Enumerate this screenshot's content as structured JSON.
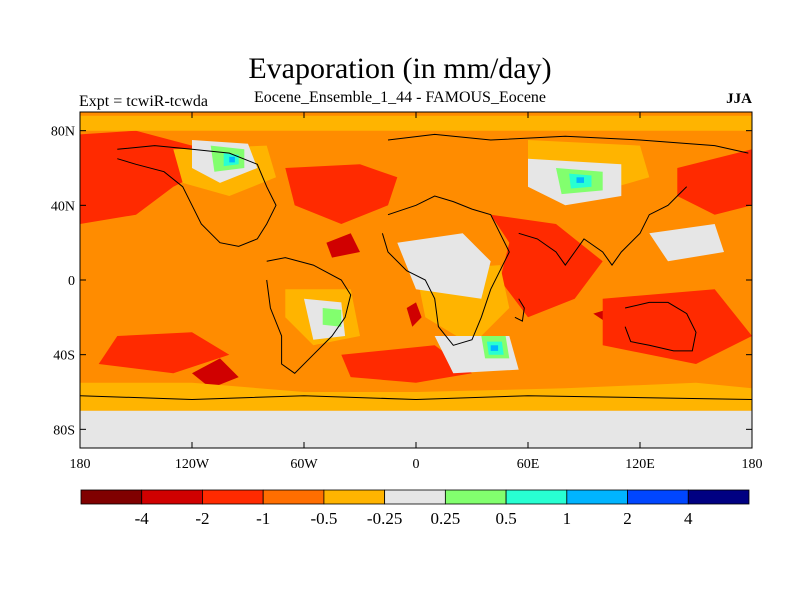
{
  "header": {
    "title": "Evaporation (in mm/day)",
    "subtitle": "Eocene_Ensemble_1_44 - FAMOUS_Eocene",
    "left_label": "Expt = tcwiR-tcwda",
    "right_label": "JJA"
  },
  "map": {
    "projection": "cylindrical-equidistant",
    "lon_range": [
      -180,
      180
    ],
    "lat_range": [
      -90,
      90
    ],
    "x_ticks": [
      {
        "lon": -180,
        "label": "180"
      },
      {
        "lon": -120,
        "label": "120W"
      },
      {
        "lon": -60,
        "label": "60W"
      },
      {
        "lon": 0,
        "label": "0"
      },
      {
        "lon": 60,
        "label": "60E"
      },
      {
        "lon": 120,
        "label": "120E"
      },
      {
        "lon": 180,
        "label": "180"
      }
    ],
    "y_ticks": [
      {
        "lat": 80,
        "label": "80N"
      },
      {
        "lat": 40,
        "label": "40N"
      },
      {
        "lat": 0,
        "label": "0"
      },
      {
        "lat": -40,
        "label": "40S"
      },
      {
        "lat": -80,
        "label": "80S"
      }
    ],
    "background_color": "#ff8c00"
  },
  "colorbar": {
    "colors": [
      "#800000",
      "#d00000",
      "#ff2a00",
      "#ff6e00",
      "#ffb400",
      "#e6e6e6",
      "#82ff6e",
      "#28ffd2",
      "#00b4ff",
      "#0046ff",
      "#000082"
    ],
    "labels": [
      "-4",
      "-2",
      "-1",
      "-0.5",
      "-0.25",
      "0.25",
      "0.5",
      "1",
      "2",
      "4"
    ]
  },
  "regions": [
    {
      "name": "deep-red",
      "color": "#d00000",
      "points": [
        [
          -178,
          55
        ],
        [
          -165,
          58
        ],
        [
          -145,
          55
        ],
        [
          -140,
          45
        ],
        [
          -150,
          38
        ],
        [
          -170,
          40
        ],
        [
          -178,
          48
        ]
      ]
    },
    {
      "name": "deep-red",
      "color": "#d00000",
      "points": [
        [
          -120,
          -50
        ],
        [
          -105,
          -42
        ],
        [
          -95,
          -52
        ],
        [
          -110,
          -58
        ]
      ]
    },
    {
      "name": "deep-red",
      "color": "#d00000",
      "points": [
        [
          95,
          -18
        ],
        [
          115,
          -12
        ],
        [
          140,
          -20
        ],
        [
          150,
          -30
        ],
        [
          130,
          -33
        ],
        [
          110,
          -28
        ]
      ]
    },
    {
      "name": "deep-red",
      "color": "#d00000",
      "points": [
        [
          -5,
          -15
        ],
        [
          0,
          -12
        ],
        [
          3,
          -20
        ],
        [
          -2,
          -25
        ]
      ]
    },
    {
      "name": "deep-red",
      "color": "#d00000",
      "points": [
        [
          -48,
          20
        ],
        [
          -35,
          25
        ],
        [
          -30,
          15
        ],
        [
          -45,
          12
        ]
      ]
    },
    {
      "name": "red",
      "color": "#ff2a00",
      "points": [
        [
          -180,
          78
        ],
        [
          -150,
          80
        ],
        [
          -120,
          72
        ],
        [
          -110,
          60
        ],
        [
          -130,
          50
        ],
        [
          -150,
          35
        ],
        [
          -180,
          30
        ]
      ]
    },
    {
      "name": "red",
      "color": "#ff2a00",
      "points": [
        [
          -70,
          60
        ],
        [
          -30,
          62
        ],
        [
          -10,
          55
        ],
        [
          -15,
          40
        ],
        [
          -40,
          30
        ],
        [
          -65,
          40
        ]
      ]
    },
    {
      "name": "red",
      "color": "#ff2a00",
      "points": [
        [
          40,
          35
        ],
        [
          75,
          30
        ],
        [
          100,
          10
        ],
        [
          85,
          -10
        ],
        [
          60,
          -20
        ],
        [
          45,
          0
        ],
        [
          50,
          20
        ]
      ]
    },
    {
      "name": "red",
      "color": "#ff2a00",
      "points": [
        [
          100,
          -10
        ],
        [
          160,
          -5
        ],
        [
          180,
          -30
        ],
        [
          150,
          -45
        ],
        [
          100,
          -35
        ]
      ]
    },
    {
      "name": "red",
      "color": "#ff2a00",
      "points": [
        [
          140,
          60
        ],
        [
          180,
          70
        ],
        [
          180,
          40
        ],
        [
          160,
          35
        ],
        [
          140,
          45
        ]
      ]
    },
    {
      "name": "red",
      "color": "#ff2a00",
      "points": [
        [
          -160,
          -30
        ],
        [
          -120,
          -28
        ],
        [
          -100,
          -40
        ],
        [
          -130,
          -50
        ],
        [
          -170,
          -45
        ]
      ]
    },
    {
      "name": "red",
      "color": "#ff2a00",
      "points": [
        [
          -40,
          -40
        ],
        [
          10,
          -35
        ],
        [
          30,
          -50
        ],
        [
          0,
          -55
        ],
        [
          -35,
          -52
        ]
      ]
    },
    {
      "name": "yellow",
      "color": "#ffb400",
      "points": [
        [
          -130,
          70
        ],
        [
          -80,
          72
        ],
        [
          -75,
          55
        ],
        [
          -100,
          45
        ],
        [
          -125,
          52
        ]
      ]
    },
    {
      "name": "yellow",
      "color": "#ffb400",
      "points": [
        [
          60,
          75
        ],
        [
          120,
          72
        ],
        [
          125,
          55
        ],
        [
          90,
          45
        ],
        [
          60,
          55
        ]
      ]
    },
    {
      "name": "yellow",
      "color": "#ffb400",
      "points": [
        [
          -180,
          -55
        ],
        [
          -120,
          -55
        ],
        [
          -60,
          -60
        ],
        [
          0,
          -60
        ],
        [
          80,
          -58
        ],
        [
          150,
          -55
        ],
        [
          180,
          -58
        ],
        [
          180,
          -70
        ],
        [
          -180,
          -70
        ]
      ]
    },
    {
      "name": "yellow",
      "color": "#ffb400",
      "points": [
        [
          -70,
          -5
        ],
        [
          -35,
          -5
        ],
        [
          -30,
          -30
        ],
        [
          -55,
          -35
        ],
        [
          -70,
          -20
        ]
      ]
    },
    {
      "name": "yellow",
      "color": "#ffb400",
      "points": [
        [
          0,
          5
        ],
        [
          45,
          8
        ],
        [
          50,
          -15
        ],
        [
          30,
          -35
        ],
        [
          5,
          -20
        ]
      ]
    },
    {
      "name": "yellow",
      "color": "#ffb400",
      "points": [
        [
          -180,
          88
        ],
        [
          180,
          88
        ],
        [
          180,
          80
        ],
        [
          -180,
          80
        ]
      ]
    },
    {
      "name": "gray",
      "color": "#e6e6e6",
      "points": [
        [
          -180,
          -70
        ],
        [
          180,
          -70
        ],
        [
          180,
          -90
        ],
        [
          -180,
          -90
        ]
      ]
    },
    {
      "name": "gray",
      "color": "#e6e6e6",
      "points": [
        [
          -120,
          75
        ],
        [
          -90,
          73
        ],
        [
          -85,
          60
        ],
        [
          -105,
          52
        ],
        [
          -120,
          60
        ]
      ]
    },
    {
      "name": "gray",
      "color": "#e6e6e6",
      "points": [
        [
          60,
          65
        ],
        [
          110,
          62
        ],
        [
          110,
          45
        ],
        [
          80,
          40
        ],
        [
          60,
          50
        ]
      ]
    },
    {
      "name": "gray",
      "color": "#e6e6e6",
      "points": [
        [
          -10,
          20
        ],
        [
          25,
          25
        ],
        [
          40,
          10
        ],
        [
          35,
          -10
        ],
        [
          0,
          -5
        ]
      ]
    },
    {
      "name": "gray",
      "color": "#e6e6e6",
      "points": [
        [
          -60,
          -10
        ],
        [
          -40,
          -12
        ],
        [
          -38,
          -30
        ],
        [
          -55,
          -32
        ]
      ]
    },
    {
      "name": "gray",
      "color": "#e6e6e6",
      "points": [
        [
          10,
          -30
        ],
        [
          50,
          -30
        ],
        [
          55,
          -48
        ],
        [
          20,
          -50
        ]
      ]
    },
    {
      "name": "gray",
      "color": "#e6e6e6",
      "points": [
        [
          125,
          25
        ],
        [
          160,
          30
        ],
        [
          165,
          15
        ],
        [
          135,
          10
        ]
      ]
    },
    {
      "name": "green",
      "color": "#82ff6e",
      "points": [
        [
          -110,
          72
        ],
        [
          -92,
          70
        ],
        [
          -92,
          60
        ],
        [
          -108,
          58
        ]
      ]
    },
    {
      "name": "green",
      "color": "#82ff6e",
      "points": [
        [
          75,
          60
        ],
        [
          100,
          58
        ],
        [
          100,
          48
        ],
        [
          78,
          46
        ]
      ]
    },
    {
      "name": "green",
      "color": "#82ff6e",
      "points": [
        [
          -50,
          -15
        ],
        [
          -40,
          -16
        ],
        [
          -40,
          -25
        ],
        [
          -50,
          -24
        ]
      ]
    },
    {
      "name": "green",
      "color": "#82ff6e",
      "points": [
        [
          35,
          -30
        ],
        [
          48,
          -30
        ],
        [
          50,
          -42
        ],
        [
          37,
          -42
        ]
      ]
    },
    {
      "name": "cyan",
      "color": "#28ffd2",
      "points": [
        [
          -103,
          68
        ],
        [
          -95,
          67
        ],
        [
          -95,
          62
        ],
        [
          -103,
          61
        ]
      ]
    },
    {
      "name": "cyan",
      "color": "#28ffd2",
      "points": [
        [
          82,
          57
        ],
        [
          94,
          56
        ],
        [
          94,
          50
        ],
        [
          83,
          49
        ]
      ]
    },
    {
      "name": "cyan",
      "color": "#28ffd2",
      "points": [
        [
          38,
          -33
        ],
        [
          46,
          -33
        ],
        [
          47,
          -40
        ],
        [
          39,
          -40
        ]
      ]
    },
    {
      "name": "blue",
      "color": "#00b4ff",
      "points": [
        [
          -100,
          66
        ],
        [
          -97,
          66
        ],
        [
          -97,
          63
        ],
        [
          -100,
          63
        ]
      ]
    },
    {
      "name": "blue",
      "color": "#00b4ff",
      "points": [
        [
          86,
          55
        ],
        [
          90,
          55
        ],
        [
          90,
          52
        ],
        [
          86,
          52
        ]
      ]
    },
    {
      "name": "blue",
      "color": "#00b4ff",
      "points": [
        [
          40,
          -35
        ],
        [
          44,
          -35
        ],
        [
          44,
          -38
        ],
        [
          40,
          -38
        ]
      ]
    }
  ],
  "coastlines": [
    [
      [
        -160,
        70
      ],
      [
        -140,
        72
      ],
      [
        -120,
        70
      ],
      [
        -100,
        68
      ],
      [
        -85,
        62
      ],
      [
        -80,
        50
      ],
      [
        -75,
        40
      ],
      [
        -80,
        30
      ],
      [
        -85,
        22
      ],
      [
        -95,
        18
      ],
      [
        -105,
        20
      ],
      [
        -115,
        30
      ],
      [
        -120,
        40
      ],
      [
        -125,
        50
      ],
      [
        -135,
        58
      ],
      [
        -150,
        62
      ],
      [
        -160,
        65
      ]
    ],
    [
      [
        -80,
        10
      ],
      [
        -70,
        12
      ],
      [
        -55,
        8
      ],
      [
        -40,
        0
      ],
      [
        -35,
        -8
      ],
      [
        -38,
        -20
      ],
      [
        -45,
        -30
      ],
      [
        -55,
        -40
      ],
      [
        -65,
        -50
      ],
      [
        -72,
        -45
      ],
      [
        -72,
        -30
      ],
      [
        -78,
        -15
      ],
      [
        -80,
        0
      ]
    ],
    [
      [
        -15,
        75
      ],
      [
        10,
        78
      ],
      [
        40,
        75
      ],
      [
        80,
        77
      ],
      [
        120,
        75
      ],
      [
        160,
        72
      ],
      [
        178,
        68
      ]
    ],
    [
      [
        -15,
        35
      ],
      [
        0,
        40
      ],
      [
        10,
        45
      ],
      [
        20,
        42
      ],
      [
        30,
        38
      ],
      [
        40,
        35
      ],
      [
        45,
        25
      ],
      [
        50,
        15
      ],
      [
        45,
        5
      ],
      [
        40,
        -5
      ],
      [
        35,
        -20
      ],
      [
        30,
        -32
      ],
      [
        20,
        -35
      ],
      [
        12,
        -25
      ],
      [
        10,
        -10
      ],
      [
        5,
        0
      ],
      [
        -5,
        5
      ],
      [
        -15,
        15
      ],
      [
        -18,
        25
      ]
    ],
    [
      [
        55,
        25
      ],
      [
        65,
        22
      ],
      [
        75,
        15
      ],
      [
        80,
        8
      ],
      [
        85,
        15
      ],
      [
        90,
        22
      ],
      [
        100,
        15
      ],
      [
        105,
        8
      ],
      [
        110,
        15
      ],
      [
        120,
        25
      ],
      [
        125,
        35
      ],
      [
        135,
        40
      ],
      [
        140,
        45
      ],
      [
        145,
        50
      ]
    ],
    [
      [
        112,
        -15
      ],
      [
        125,
        -12
      ],
      [
        135,
        -12
      ],
      [
        145,
        -18
      ],
      [
        150,
        -28
      ],
      [
        148,
        -38
      ],
      [
        138,
        -38
      ],
      [
        125,
        -35
      ],
      [
        115,
        -33
      ],
      [
        112,
        -25
      ]
    ],
    [
      [
        -180,
        -62
      ],
      [
        -120,
        -64
      ],
      [
        -60,
        -62
      ],
      [
        0,
        -64
      ],
      [
        60,
        -62
      ],
      [
        120,
        -63
      ],
      [
        180,
        -64
      ]
    ],
    [
      [
        55,
        -10
      ],
      [
        58,
        -15
      ],
      [
        57,
        -22
      ],
      [
        53,
        -20
      ]
    ]
  ]
}
